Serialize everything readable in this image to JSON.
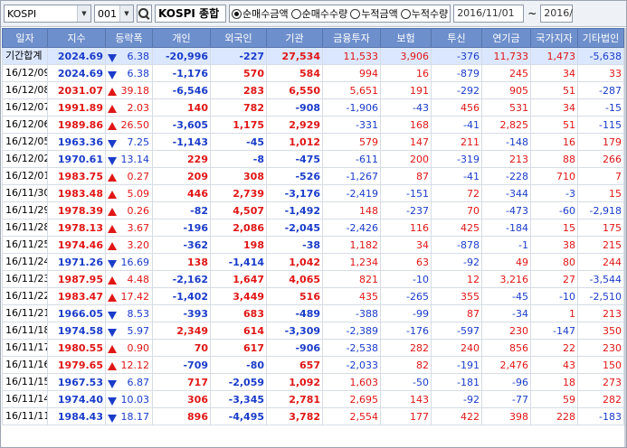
{
  "toolbar": {
    "market": "KOSPI",
    "code": "001",
    "index_name": "KOSPI 종합",
    "radios": [
      {
        "label": "순매수금액",
        "selected": true
      },
      {
        "label": "순매수수량",
        "selected": false
      },
      {
        "label": "누적금액",
        "selected": false
      },
      {
        "label": "누적수량",
        "selected": false
      }
    ],
    "date_from": "2016/11/01",
    "date_sep": "~",
    "date_to": "2016/"
  },
  "columns": [
    "일자",
    "지수",
    "등락폭",
    "개인",
    "외국인",
    "기관",
    "금융투자",
    "보험",
    "투신",
    "연기금",
    "국가지자",
    "기타법인"
  ],
  "rows": [
    {
      "date": "기간합계",
      "index": "2024.69",
      "dir": "down",
      "change": "6.38",
      "cells": [
        "-20,996",
        "-227",
        "27,534",
        "11,533",
        "3,906",
        "-376",
        "11,733",
        "1,473",
        "-5,638"
      ],
      "summary": true
    },
    {
      "date": "16/12/09",
      "index": "2024.69",
      "dir": "down",
      "change": "6.38",
      "cells": [
        "-1,176",
        "570",
        "584",
        "994",
        "16",
        "-879",
        "245",
        "34",
        "33"
      ]
    },
    {
      "date": "16/12/08",
      "index": "2031.07",
      "dir": "up",
      "change": "39.18",
      "cells": [
        "-6,546",
        "283",
        "6,550",
        "5,651",
        "191",
        "-292",
        "905",
        "51",
        "-287"
      ]
    },
    {
      "date": "16/12/07",
      "index": "1991.89",
      "dir": "up",
      "change": "2.03",
      "cells": [
        "140",
        "782",
        "-908",
        "-1,906",
        "-43",
        "456",
        "531",
        "34",
        "-15"
      ]
    },
    {
      "date": "16/12/06",
      "index": "1989.86",
      "dir": "up",
      "change": "26.50",
      "cells": [
        "-3,605",
        "1,175",
        "2,929",
        "-331",
        "168",
        "-41",
        "2,825",
        "51",
        "-115"
      ]
    },
    {
      "date": "16/12/05",
      "index": "1963.36",
      "dir": "down",
      "change": "7.25",
      "cells": [
        "-1,143",
        "-45",
        "1,012",
        "579",
        "147",
        "211",
        "-148",
        "16",
        "179"
      ]
    },
    {
      "date": "16/12/02",
      "index": "1970.61",
      "dir": "down",
      "change": "13.14",
      "cells": [
        "229",
        "-8",
        "-475",
        "-611",
        "200",
        "-319",
        "213",
        "88",
        "266"
      ]
    },
    {
      "date": "16/12/01",
      "index": "1983.75",
      "dir": "up",
      "change": "0.27",
      "cells": [
        "209",
        "308",
        "-526",
        "-1,267",
        "87",
        "-41",
        "-228",
        "710",
        "7"
      ]
    },
    {
      "date": "16/11/30",
      "index": "1983.48",
      "dir": "up",
      "change": "5.09",
      "cells": [
        "446",
        "2,739",
        "-3,176",
        "-2,419",
        "-151",
        "72",
        "-344",
        "-3",
        "15"
      ]
    },
    {
      "date": "16/11/29",
      "index": "1978.39",
      "dir": "up",
      "change": "0.26",
      "cells": [
        "-82",
        "4,507",
        "-1,492",
        "148",
        "-237",
        "70",
        "-473",
        "-60",
        "-2,918"
      ]
    },
    {
      "date": "16/11/28",
      "index": "1978.13",
      "dir": "up",
      "change": "3.67",
      "cells": [
        "-196",
        "2,086",
        "-2,045",
        "-2,426",
        "116",
        "425",
        "-184",
        "15",
        "175"
      ]
    },
    {
      "date": "16/11/25",
      "index": "1974.46",
      "dir": "up",
      "change": "3.20",
      "cells": [
        "-362",
        "198",
        "-38",
        "1,182",
        "34",
        "-878",
        "-1",
        "38",
        "215"
      ]
    },
    {
      "date": "16/11/24",
      "index": "1971.26",
      "dir": "down",
      "change": "16.69",
      "cells": [
        "138",
        "-1,414",
        "1,042",
        "1,234",
        "63",
        "-92",
        "49",
        "80",
        "244"
      ]
    },
    {
      "date": "16/11/23",
      "index": "1987.95",
      "dir": "up",
      "change": "4.48",
      "cells": [
        "-2,162",
        "1,647",
        "4,065",
        "821",
        "-10",
        "12",
        "3,216",
        "27",
        "-3,544"
      ]
    },
    {
      "date": "16/11/22",
      "index": "1983.47",
      "dir": "up",
      "change": "17.42",
      "cells": [
        "-1,402",
        "3,449",
        "516",
        "435",
        "-265",
        "355",
        "-45",
        "-10",
        "-2,510"
      ]
    },
    {
      "date": "16/11/21",
      "index": "1966.05",
      "dir": "down",
      "change": "8.53",
      "cells": [
        "-393",
        "683",
        "-489",
        "-388",
        "-99",
        "87",
        "-34",
        "1",
        "213"
      ]
    },
    {
      "date": "16/11/18",
      "index": "1974.58",
      "dir": "down",
      "change": "5.97",
      "cells": [
        "2,349",
        "614",
        "-3,309",
        "-2,389",
        "-176",
        "-597",
        "230",
        "-147",
        "350"
      ]
    },
    {
      "date": "16/11/17",
      "index": "1980.55",
      "dir": "up",
      "change": "0.90",
      "cells": [
        "70",
        "617",
        "-906",
        "-2,538",
        "282",
        "240",
        "856",
        "22",
        "230"
      ]
    },
    {
      "date": "16/11/16",
      "index": "1979.65",
      "dir": "up",
      "change": "12.12",
      "cells": [
        "-709",
        "-80",
        "657",
        "-2,033",
        "82",
        "-191",
        "2,476",
        "43",
        "150"
      ]
    },
    {
      "date": "16/11/15",
      "index": "1967.53",
      "dir": "down",
      "change": "6.87",
      "cells": [
        "717",
        "-2,059",
        "1,092",
        "1,603",
        "-50",
        "-181",
        "-96",
        "18",
        "273"
      ]
    },
    {
      "date": "16/11/14",
      "index": "1974.40",
      "dir": "down",
      "change": "10.03",
      "cells": [
        "306",
        "-3,345",
        "2,781",
        "2,695",
        "143",
        "-92",
        "-77",
        "59",
        "282"
      ]
    },
    {
      "date": "16/11/11",
      "index": "1984.43",
      "dir": "down",
      "change": "18.17",
      "cells": [
        "896",
        "-4,495",
        "3,782",
        "2,554",
        "177",
        "422",
        "398",
        "228",
        "-183"
      ]
    }
  ],
  "colors": {
    "up": "#e01616",
    "down": "#1a3cc9",
    "header": "#6d8fcc",
    "summary": "#dbe7ff"
  }
}
